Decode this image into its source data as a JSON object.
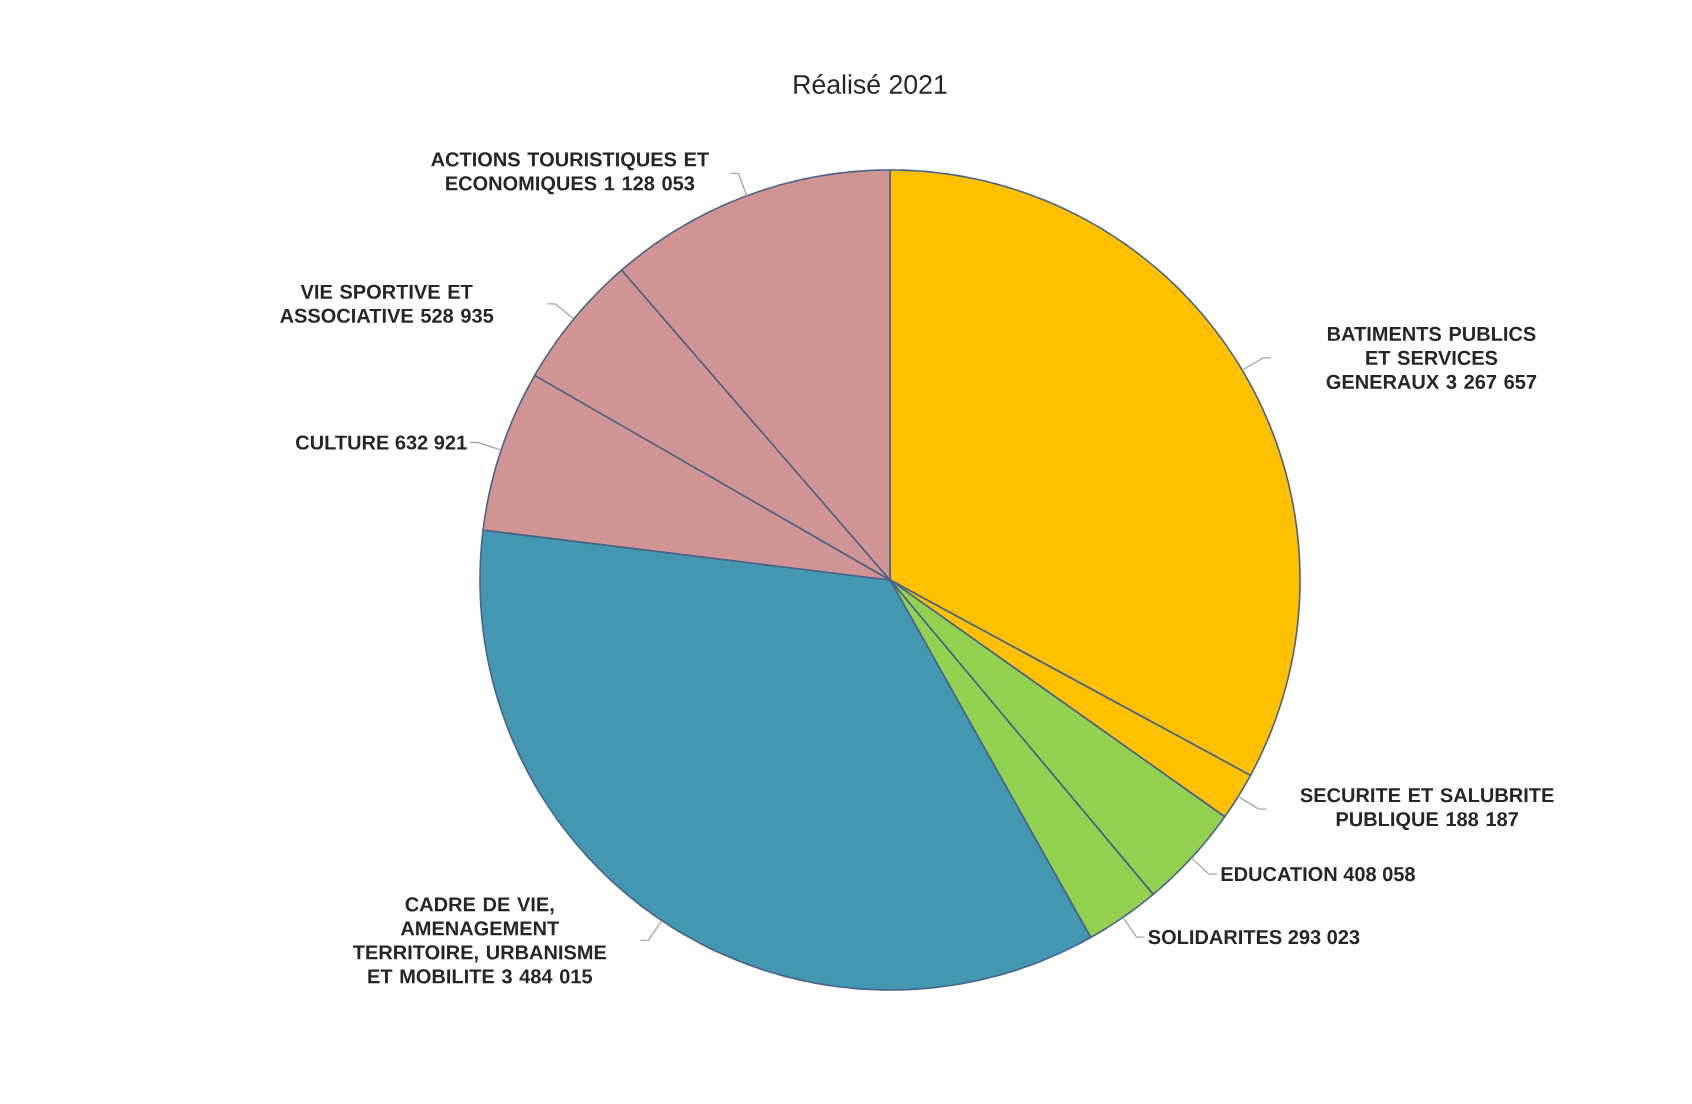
{
  "chart_data": {
    "type": "pie",
    "title": "Réalisé 2021",
    "categories": [
      "BATIMENTS PUBLICS ET SERVICES GENERAUX",
      "SECURITE ET SALUBRITE PUBLIQUE",
      "EDUCATION",
      "SOLIDARITES",
      "CADRE DE VIE, AMENAGEMENT TERRITOIRE, URBANISME ET MOBILITE",
      "CULTURE",
      "VIE SPORTIVE ET ASSOCIATIVE",
      "ACTIONS TOURISTIQUES ET ECONOMIQUES"
    ],
    "values": [
      3267657,
      188187,
      408058,
      293023,
      3484015,
      632921,
      528935,
      1128053
    ],
    "value_labels": [
      "3 267 657",
      "188 187",
      "408 058",
      "293 023",
      "3 484 015",
      "632 921",
      "528 935",
      "1 128 053"
    ],
    "colors": [
      "#ffc000",
      "#ffc000",
      "#92d050",
      "#92d050",
      "#4397b0",
      "#d09494",
      "#d09494",
      "#d09494"
    ]
  }
}
